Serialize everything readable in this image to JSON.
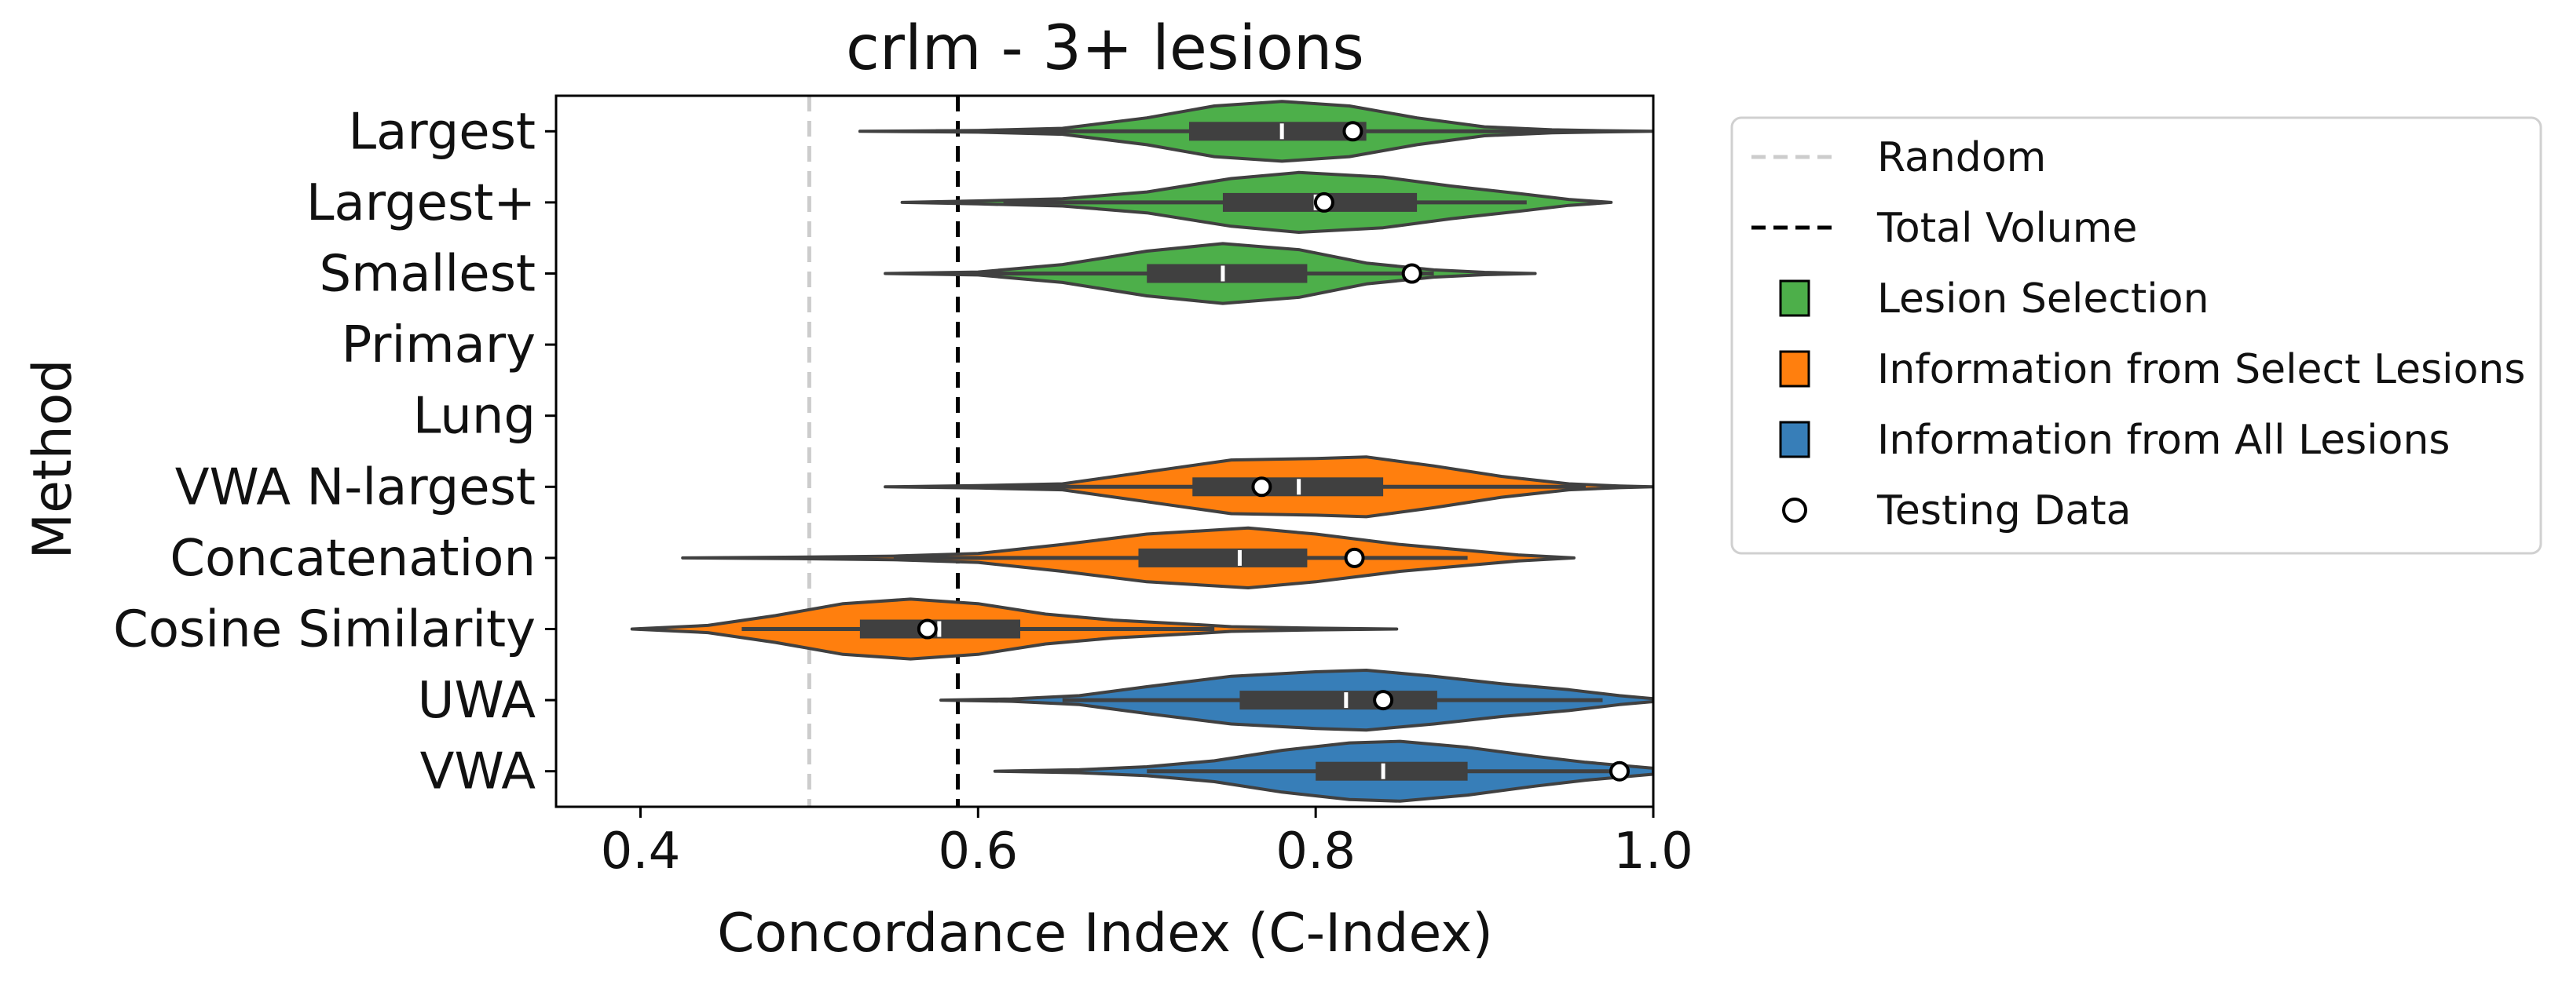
{
  "chart_data": {
    "type": "violin",
    "orientation": "horizontal",
    "title": "crlm - 3+ lesions",
    "xlabel": "Concordance Index (C-Index)",
    "ylabel": "Method",
    "xlim": [
      0.35,
      1.0
    ],
    "xticks": [
      "0.4",
      "0.6",
      "0.8",
      "1.0"
    ],
    "xtick_values": [
      0.4,
      0.6,
      0.8,
      1.0
    ],
    "reference_lines": [
      {
        "name": "Random",
        "x": 0.5,
        "color": "#cccccc",
        "style": "dashed"
      },
      {
        "name": "Total Volume",
        "x": 0.588,
        "color": "#000000",
        "style": "dashed"
      }
    ],
    "categories": [
      "Largest",
      "Largest+",
      "Smallest",
      "Primary",
      "Lung",
      "VWA N-largest",
      "Concatenation",
      "Cosine Similarity",
      "UWA",
      "VWA"
    ],
    "groups": [
      {
        "name": "Lesion Selection",
        "color": "#4daf4a"
      },
      {
        "name": "Information from Select Lesions",
        "color": "#ff7f0e"
      },
      {
        "name": "Information from All Lesions",
        "color": "#377eb8"
      }
    ],
    "testing_data_label": "Testing Data",
    "violins": [
      {
        "category": "Largest",
        "group": 0,
        "min": 0.53,
        "max": 1.0,
        "q1": 0.725,
        "median": 0.78,
        "q3": 0.83,
        "whisker_low": 0.575,
        "whisker_high": 0.96,
        "testing": 0.822,
        "density": [
          [
            0.53,
            0.0
          ],
          [
            0.6,
            0.03
          ],
          [
            0.65,
            0.1
          ],
          [
            0.7,
            0.45
          ],
          [
            0.74,
            0.85
          ],
          [
            0.78,
            1.0
          ],
          [
            0.82,
            0.85
          ],
          [
            0.86,
            0.45
          ],
          [
            0.9,
            0.15
          ],
          [
            0.94,
            0.05
          ],
          [
            0.97,
            0.02
          ],
          [
            1.0,
            0.0
          ]
        ]
      },
      {
        "category": "Largest+",
        "group": 0,
        "min": 0.555,
        "max": 0.975,
        "q1": 0.745,
        "median": 0.8,
        "q3": 0.86,
        "whisker_low": 0.615,
        "whisker_high": 0.925,
        "testing": 0.805,
        "density": [
          [
            0.555,
            0.0
          ],
          [
            0.6,
            0.05
          ],
          [
            0.65,
            0.12
          ],
          [
            0.7,
            0.35
          ],
          [
            0.75,
            0.8
          ],
          [
            0.79,
            1.0
          ],
          [
            0.84,
            0.85
          ],
          [
            0.88,
            0.55
          ],
          [
            0.92,
            0.3
          ],
          [
            0.95,
            0.1
          ],
          [
            0.975,
            0.0
          ]
        ]
      },
      {
        "category": "Smallest",
        "group": 0,
        "min": 0.545,
        "max": 0.93,
        "q1": 0.7,
        "median": 0.745,
        "q3": 0.795,
        "whisker_low": 0.59,
        "whisker_high": 0.87,
        "testing": 0.857,
        "density": [
          [
            0.545,
            0.0
          ],
          [
            0.6,
            0.05
          ],
          [
            0.65,
            0.3
          ],
          [
            0.7,
            0.75
          ],
          [
            0.745,
            1.0
          ],
          [
            0.79,
            0.8
          ],
          [
            0.83,
            0.35
          ],
          [
            0.87,
            0.12
          ],
          [
            0.9,
            0.04
          ],
          [
            0.93,
            0.0
          ]
        ]
      },
      {
        "category": "Primary",
        "group": 0,
        "density": []
      },
      {
        "category": "Lung",
        "group": 0,
        "density": []
      },
      {
        "category": "VWA N-largest",
        "group": 1,
        "min": 0.545,
        "max": 1.0,
        "q1": 0.727,
        "median": 0.79,
        "q3": 0.84,
        "whisker_low": 0.59,
        "whisker_high": 0.96,
        "testing": 0.768,
        "density": [
          [
            0.545,
            0.0
          ],
          [
            0.6,
            0.04
          ],
          [
            0.65,
            0.1
          ],
          [
            0.7,
            0.5
          ],
          [
            0.75,
            0.9
          ],
          [
            0.8,
            0.95
          ],
          [
            0.83,
            1.0
          ],
          [
            0.87,
            0.7
          ],
          [
            0.91,
            0.35
          ],
          [
            0.95,
            0.1
          ],
          [
            0.98,
            0.03
          ],
          [
            1.0,
            0.0
          ]
        ]
      },
      {
        "category": "Concatenation",
        "group": 1,
        "min": 0.425,
        "max": 0.953,
        "q1": 0.695,
        "median": 0.755,
        "q3": 0.795,
        "whisker_low": 0.55,
        "whisker_high": 0.89,
        "testing": 0.823,
        "density": [
          [
            0.425,
            0.0
          ],
          [
            0.5,
            0.03
          ],
          [
            0.55,
            0.06
          ],
          [
            0.6,
            0.15
          ],
          [
            0.65,
            0.45
          ],
          [
            0.7,
            0.8
          ],
          [
            0.76,
            1.0
          ],
          [
            0.8,
            0.8
          ],
          [
            0.85,
            0.45
          ],
          [
            0.89,
            0.25
          ],
          [
            0.92,
            0.1
          ],
          [
            0.953,
            0.0
          ]
        ]
      },
      {
        "category": "Cosine Similarity",
        "group": 1,
        "min": 0.395,
        "max": 0.848,
        "q1": 0.53,
        "median": 0.577,
        "q3": 0.625,
        "whisker_low": 0.46,
        "whisker_high": 0.74,
        "testing": 0.57,
        "density": [
          [
            0.395,
            0.0
          ],
          [
            0.44,
            0.12
          ],
          [
            0.48,
            0.45
          ],
          [
            0.52,
            0.85
          ],
          [
            0.56,
            1.0
          ],
          [
            0.6,
            0.85
          ],
          [
            0.64,
            0.5
          ],
          [
            0.68,
            0.3
          ],
          [
            0.72,
            0.18
          ],
          [
            0.75,
            0.08
          ],
          [
            0.8,
            0.03
          ],
          [
            0.848,
            0.0
          ]
        ]
      },
      {
        "category": "UWA",
        "group": 2,
        "min": 0.578,
        "max": 1.0,
        "q1": 0.755,
        "median": 0.818,
        "q3": 0.872,
        "whisker_low": 0.65,
        "whisker_high": 0.97,
        "testing": 0.84,
        "density": [
          [
            0.578,
            0.0
          ],
          [
            0.62,
            0.04
          ],
          [
            0.66,
            0.15
          ],
          [
            0.7,
            0.45
          ],
          [
            0.75,
            0.8
          ],
          [
            0.8,
            0.95
          ],
          [
            0.83,
            1.0
          ],
          [
            0.87,
            0.8
          ],
          [
            0.91,
            0.55
          ],
          [
            0.95,
            0.35
          ],
          [
            0.98,
            0.15
          ],
          [
            1.0,
            0.05
          ]
        ]
      },
      {
        "category": "VWA",
        "group": 2,
        "min": 0.61,
        "max": 1.0,
        "q1": 0.8,
        "median": 0.84,
        "q3": 0.89,
        "whisker_low": 0.7,
        "whisker_high": 0.98,
        "testing": 0.98,
        "density": [
          [
            0.61,
            0.0
          ],
          [
            0.66,
            0.05
          ],
          [
            0.7,
            0.15
          ],
          [
            0.74,
            0.35
          ],
          [
            0.78,
            0.7
          ],
          [
            0.82,
            0.95
          ],
          [
            0.85,
            1.0
          ],
          [
            0.89,
            0.8
          ],
          [
            0.93,
            0.5
          ],
          [
            0.96,
            0.3
          ],
          [
            0.99,
            0.15
          ],
          [
            1.0,
            0.1
          ]
        ]
      }
    ],
    "legend": {
      "placement": "outside-right",
      "items": [
        {
          "label": "Random",
          "kind": "line",
          "color": "#cccccc",
          "style": "dashed"
        },
        {
          "label": "Total Volume",
          "kind": "line",
          "color": "#000000",
          "style": "dashed"
        },
        {
          "label": "Lesion Selection",
          "kind": "patch",
          "color": "#4daf4a"
        },
        {
          "label": "Information from Select Lesions",
          "kind": "patch",
          "color": "#ff7f0e"
        },
        {
          "label": "Information from All Lesions",
          "kind": "patch",
          "color": "#377eb8"
        },
        {
          "label": "Testing Data",
          "kind": "marker",
          "color": "#ffffff"
        }
      ]
    },
    "grid": false
  }
}
